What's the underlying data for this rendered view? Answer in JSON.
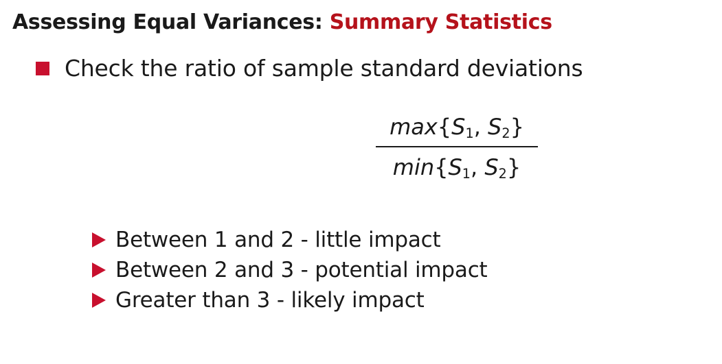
{
  "slide": {
    "title_prefix": "Assessing Equal Variances: ",
    "title_accent": "Summary Statistics",
    "bullet": "Check the ratio of sample standard deviations",
    "formula": {
      "numerator_fn": "max",
      "denominator_fn": "min",
      "open_brace": "{",
      "close_brace": "}",
      "var": "S",
      "sub1": "1",
      "sub2": "2",
      "separator": ",  "
    },
    "sub_bullets": [
      "Between 1 and 2 - little impact",
      "Between 2 and 3 - potential impact",
      "Greater than 3 - likely impact"
    ],
    "colors": {
      "accent": "#b5121b",
      "bullet": "#c8102e"
    }
  }
}
